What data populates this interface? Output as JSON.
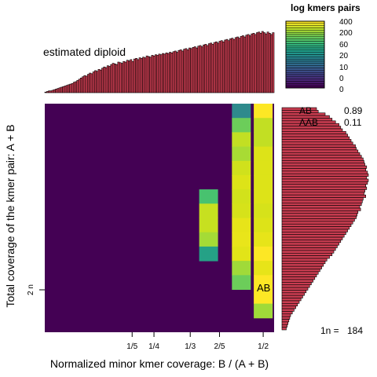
{
  "chart_data": {
    "type": "heatmap",
    "title": "",
    "xlabel": "Normalized minor kmer coverage: B / (A + B)",
    "ylabel": "Total coverage of the kmer pair: A + B",
    "x_ticks": [
      "1/5",
      "1/4",
      "1/3",
      "2/5",
      "1/2"
    ],
    "x_tick_values": [
      0.2,
      0.25,
      0.333,
      0.4,
      0.5
    ],
    "y_ticks": [
      "2 n"
    ],
    "top_histogram_label": "estimated diploid",
    "heatmap_annotation": "AB",
    "legend": {
      "title": "log kmers pairs",
      "labels": [
        "400",
        "200",
        "60",
        "20",
        "10",
        "0",
        "0"
      ],
      "colormap": "viridis"
    },
    "proportions": [
      {
        "label": "AB",
        "value": "0.89"
      },
      {
        "label": "AAB",
        "value": "0.11"
      }
    ],
    "footer": {
      "label": "1n =",
      "value": "184"
    },
    "colors": {
      "background": "#440154",
      "bar_fill": "#c83c50",
      "bar_stroke": "#000000"
    },
    "heatmap_columns": [
      {
        "x": 0.375,
        "cells": [
          {
            "row": 7,
            "color": "#48c26f"
          },
          {
            "row": 8,
            "color": "#c7e020"
          },
          {
            "row": 9,
            "color": "#c7e020"
          },
          {
            "row": 10,
            "color": "#a5db36"
          },
          {
            "row": 11,
            "color": "#25a186"
          }
        ]
      },
      {
        "x": 0.45,
        "cells": [
          {
            "row": 1,
            "color": "#2e8a8c"
          },
          {
            "row": 2,
            "color": "#6ccd5a"
          },
          {
            "row": 3,
            "color": "#c2df23"
          },
          {
            "row": 4,
            "color": "#a8db34"
          },
          {
            "row": 5,
            "color": "#d0e11c"
          },
          {
            "row": 6,
            "color": "#dde318"
          },
          {
            "row": 7,
            "color": "#d2e21b"
          },
          {
            "row": 8,
            "color": "#d6e21a"
          },
          {
            "row": 9,
            "color": "#e7e419"
          },
          {
            "row": 10,
            "color": "#e9e51a"
          },
          {
            "row": 11,
            "color": "#e2e418"
          },
          {
            "row": 12,
            "color": "#a0da39"
          },
          {
            "row": 13,
            "color": "#6ccd5a"
          }
        ]
      },
      {
        "x": 0.5,
        "cells": [
          {
            "row": 1,
            "color": "#fde725"
          },
          {
            "row": 2,
            "color": "#c2df23"
          },
          {
            "row": 3,
            "color": "#c2df23"
          },
          {
            "row": 4,
            "color": "#dde318"
          },
          {
            "row": 5,
            "color": "#dde318"
          },
          {
            "row": 6,
            "color": "#dde318"
          },
          {
            "row": 7,
            "color": "#dde318"
          },
          {
            "row": 8,
            "color": "#d6e21a"
          },
          {
            "row": 9,
            "color": "#dde318"
          },
          {
            "row": 10,
            "color": "#e7e419"
          },
          {
            "row": 11,
            "color": "#fde725"
          },
          {
            "row": 12,
            "color": "#e7e419"
          },
          {
            "row": 13,
            "color": "#fde725"
          },
          {
            "row": 14,
            "color": "#fde725"
          },
          {
            "row": 15,
            "color": "#a0da39"
          }
        ]
      }
    ],
    "top_histogram_values": [
      1,
      2,
      3,
      3,
      4,
      5,
      6,
      7,
      8,
      9,
      10,
      11,
      12,
      13,
      14,
      15,
      17,
      18,
      20,
      22,
      24,
      26,
      28,
      27,
      30,
      32,
      31,
      34,
      36,
      35,
      38,
      37,
      40,
      42,
      41,
      44,
      43,
      46,
      48,
      47,
      46,
      50,
      49,
      48,
      51,
      50,
      53,
      52,
      54,
      51,
      55,
      56,
      54,
      57,
      56,
      58,
      57,
      60,
      59,
      58,
      61,
      60,
      62,
      61,
      63,
      62,
      64,
      63,
      65,
      64,
      66,
      65,
      67,
      68,
      66,
      69,
      70,
      68,
      71,
      72,
      70,
      73,
      72,
      74,
      75,
      73,
      76,
      77,
      75,
      78,
      79,
      77,
      80,
      81,
      79,
      82,
      83,
      81,
      84,
      85,
      83,
      86,
      87,
      85,
      88,
      89,
      87,
      90,
      91,
      89,
      92,
      93,
      91,
      94,
      95,
      93,
      96,
      97,
      95,
      98,
      99,
      97,
      100,
      98,
      96,
      99,
      97,
      95,
      98
    ],
    "right_histogram_values": [
      40,
      42,
      50,
      55,
      58,
      62,
      66,
      68,
      70,
      74,
      76,
      78,
      80,
      82,
      85,
      86,
      88,
      90,
      92,
      94,
      95,
      96,
      98,
      97,
      99,
      100,
      98,
      100,
      99,
      97,
      98,
      96,
      95,
      97,
      94,
      93,
      92,
      90,
      91,
      88,
      87,
      86,
      84,
      82,
      80,
      78,
      76,
      74,
      72,
      70,
      68,
      66,
      64,
      62,
      60,
      58,
      55,
      52,
      50,
      48,
      46,
      44,
      42,
      40,
      38,
      36,
      34,
      32,
      30,
      28,
      26,
      24,
      22,
      20,
      18,
      16,
      14,
      12,
      10,
      9,
      8,
      7,
      6,
      5
    ]
  }
}
